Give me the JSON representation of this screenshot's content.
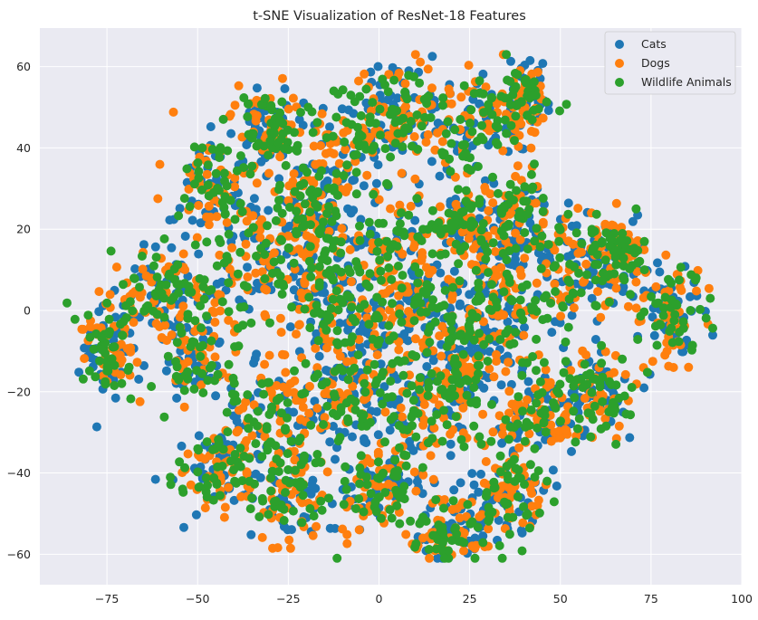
{
  "chart_data": {
    "type": "scatter",
    "title": "t-SNE Visualization of ResNet-18 Features",
    "xlabel": "",
    "ylabel": "",
    "xlim": [
      -93.5,
      100
    ],
    "ylim": [
      -67.5,
      69.5
    ],
    "xticks": [
      -75,
      -50,
      -25,
      0,
      25,
      50,
      75,
      100
    ],
    "yticks": [
      -60,
      -40,
      -20,
      0,
      20,
      40,
      60
    ],
    "xtick_labels": [
      "−75",
      "−50",
      "−25",
      "0",
      "25",
      "50",
      "75",
      "100"
    ],
    "ytick_labels": [
      "−60",
      "−40",
      "−20",
      "0",
      "20",
      "40",
      "60"
    ],
    "grid": true,
    "legend_position": "upper right",
    "series": [
      {
        "name": "Cats",
        "color": "#1f77b4"
      },
      {
        "name": "Dogs",
        "color": "#ff7f0e"
      },
      {
        "name": "Wildlife Animals",
        "color": "#2ca02c"
      }
    ],
    "clusters": [
      {
        "center": [
          -75,
          -8
        ],
        "spread": [
          6,
          9
        ]
      },
      {
        "center": [
          -60,
          5
        ],
        "spread": [
          8,
          8
        ]
      },
      {
        "center": [
          -45,
          30
        ],
        "spread": [
          8,
          10
        ]
      },
      {
        "center": [
          -30,
          45
        ],
        "spread": [
          8,
          7
        ]
      },
      {
        "center": [
          -10,
          40
        ],
        "spread": [
          10,
          8
        ]
      },
      {
        "center": [
          5,
          50
        ],
        "spread": [
          10,
          8
        ]
      },
      {
        "center": [
          25,
          45
        ],
        "spread": [
          9,
          10
        ]
      },
      {
        "center": [
          40,
          52
        ],
        "spread": [
          6,
          6
        ]
      },
      {
        "center": [
          -35,
          10
        ],
        "spread": [
          10,
          10
        ]
      },
      {
        "center": [
          -15,
          10
        ],
        "spread": [
          10,
          12
        ]
      },
      {
        "center": [
          5,
          15
        ],
        "spread": [
          10,
          12
        ]
      },
      {
        "center": [
          25,
          20
        ],
        "spread": [
          8,
          8
        ]
      },
      {
        "center": [
          40,
          20
        ],
        "spread": [
          8,
          10
        ]
      },
      {
        "center": [
          55,
          10
        ],
        "spread": [
          8,
          10
        ]
      },
      {
        "center": [
          65,
          15
        ],
        "spread": [
          6,
          6
        ]
      },
      {
        "center": [
          80,
          0
        ],
        "spread": [
          8,
          10
        ]
      },
      {
        "center": [
          -50,
          -10
        ],
        "spread": [
          8,
          10
        ]
      },
      {
        "center": [
          -30,
          -25
        ],
        "spread": [
          10,
          10
        ]
      },
      {
        "center": [
          -10,
          -20
        ],
        "spread": [
          10,
          10
        ]
      },
      {
        "center": [
          10,
          -25
        ],
        "spread": [
          10,
          10
        ]
      },
      {
        "center": [
          25,
          -15
        ],
        "spread": [
          8,
          10
        ]
      },
      {
        "center": [
          45,
          -25
        ],
        "spread": [
          8,
          8
        ]
      },
      {
        "center": [
          60,
          -20
        ],
        "spread": [
          8,
          8
        ]
      },
      {
        "center": [
          -45,
          -40
        ],
        "spread": [
          8,
          8
        ]
      },
      {
        "center": [
          -25,
          -45
        ],
        "spread": [
          8,
          8
        ]
      },
      {
        "center": [
          0,
          -45
        ],
        "spread": [
          10,
          8
        ]
      },
      {
        "center": [
          20,
          -55
        ],
        "spread": [
          10,
          5
        ]
      },
      {
        "center": [
          35,
          -45
        ],
        "spread": [
          8,
          8
        ]
      },
      {
        "center": [
          -5,
          -5
        ],
        "spread": [
          10,
          10
        ]
      },
      {
        "center": [
          15,
          0
        ],
        "spread": [
          10,
          10
        ]
      },
      {
        "center": [
          35,
          0
        ],
        "spread": [
          8,
          10
        ]
      },
      {
        "center": [
          -20,
          25
        ],
        "spread": [
          8,
          8
        ]
      }
    ],
    "points_per_cluster": 130,
    "seed": 42
  }
}
